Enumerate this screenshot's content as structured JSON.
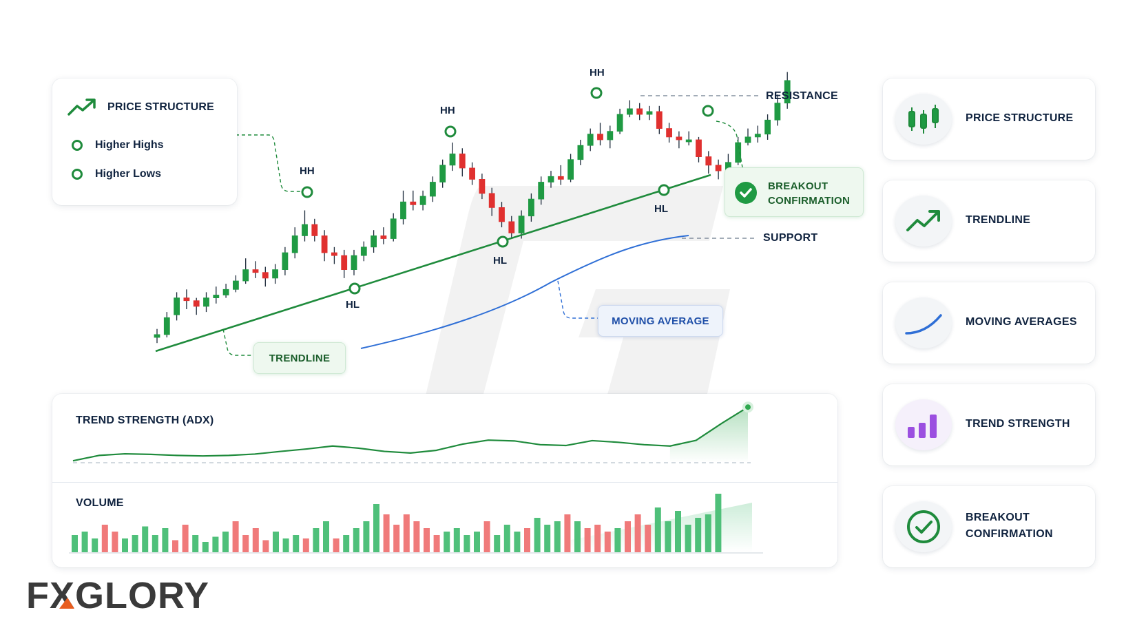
{
  "brand": {
    "logo": "FXGLORY",
    "accent": "#e85d1f"
  },
  "colors": {
    "bull": "#1f9a43",
    "bear": "#e0302f",
    "trend": "#1f8b3c",
    "ma": "#2f6fd6",
    "volume_bull": "#4fc07a",
    "volume_bear": "#f07a7a"
  },
  "price_structure_card": {
    "title": "PRICE STRUCTURE",
    "items": [
      "Higher Highs",
      "Higher Lows"
    ],
    "icon": "trend-up-icon"
  },
  "annotations": {
    "resistance": "RESISTANCE",
    "support": "SUPPORT",
    "trendline": "TRENDLINE",
    "moving_average": "MOVING AVERAGE",
    "breakout": [
      "BREAKOUT",
      "CONFIRMATION"
    ]
  },
  "pivots": [
    "HH",
    "HL",
    "HH",
    "HL",
    "HH",
    "HL"
  ],
  "indicators": {
    "adx_title": "TREND STRENGTH (ADX)",
    "volume_title": "VOLUME"
  },
  "sidebar": [
    {
      "label": "PRICE STRUCTURE",
      "icon": "candlestick-icon"
    },
    {
      "label": "TRENDLINE",
      "icon": "trend-up-icon"
    },
    {
      "label": "MOVING AVERAGES",
      "icon": "curve-icon"
    },
    {
      "label": "TREND STRENGTH",
      "icon": "bar-chart-icon"
    },
    {
      "label": "BREAKOUT CONFIRMATION",
      "icon": "check-circle-icon"
    }
  ],
  "chart_data": {
    "type": "candlestick",
    "candles": [
      [
        0.0,
        0.2,
        0.6,
        -0.4
      ],
      [
        0.2,
        1.4,
        1.8,
        0.0
      ],
      [
        1.6,
        2.8,
        3.2,
        1.2
      ],
      [
        2.8,
        2.6,
        3.4,
        2.0
      ],
      [
        2.6,
        2.2,
        2.8,
        1.6
      ],
      [
        2.2,
        2.8,
        3.2,
        1.8
      ],
      [
        2.8,
        3.0,
        3.6,
        2.4
      ],
      [
        3.0,
        3.4,
        3.8,
        2.8
      ],
      [
        3.4,
        4.0,
        4.4,
        3.2
      ],
      [
        4.0,
        4.8,
        5.6,
        3.8
      ],
      [
        4.8,
        4.6,
        5.4,
        4.2
      ],
      [
        4.6,
        4.2,
        5.0,
        3.6
      ],
      [
        4.2,
        4.8,
        5.2,
        3.8
      ],
      [
        4.8,
        6.0,
        6.4,
        4.4
      ],
      [
        6.0,
        7.2,
        7.8,
        5.6
      ],
      [
        7.2,
        8.0,
        9.0,
        6.8
      ],
      [
        8.0,
        7.2,
        8.4,
        6.8
      ],
      [
        7.2,
        6.0,
        7.6,
        5.4
      ],
      [
        6.0,
        5.8,
        6.4,
        5.2
      ],
      [
        5.8,
        4.8,
        6.2,
        4.2
      ],
      [
        4.8,
        5.8,
        6.2,
        4.4
      ],
      [
        5.8,
        6.4,
        6.8,
        5.4
      ],
      [
        6.4,
        7.2,
        7.6,
        6.0
      ],
      [
        7.2,
        7.0,
        7.8,
        6.6
      ],
      [
        7.0,
        8.4,
        8.8,
        6.8
      ],
      [
        8.4,
        9.6,
        10.4,
        8.0
      ],
      [
        9.6,
        9.4,
        10.4,
        9.0
      ],
      [
        9.4,
        10.0,
        10.4,
        9.0
      ],
      [
        10.0,
        11.0,
        11.4,
        9.6
      ],
      [
        11.0,
        12.2,
        12.6,
        10.6
      ],
      [
        12.2,
        13.0,
        13.8,
        11.8
      ],
      [
        13.0,
        12.0,
        13.4,
        11.4
      ],
      [
        12.0,
        11.2,
        12.4,
        10.8
      ],
      [
        11.2,
        10.2,
        11.6,
        9.8
      ],
      [
        10.2,
        9.2,
        10.6,
        8.6
      ],
      [
        9.2,
        8.2,
        9.6,
        7.8
      ],
      [
        8.2,
        7.4,
        8.6,
        7.0
      ],
      [
        7.4,
        8.6,
        9.0,
        7.0
      ],
      [
        8.6,
        9.8,
        10.2,
        8.2
      ],
      [
        9.8,
        11.0,
        11.4,
        9.4
      ],
      [
        11.0,
        11.4,
        11.8,
        10.6
      ],
      [
        11.4,
        11.2,
        12.2,
        10.8
      ],
      [
        11.2,
        12.6,
        13.0,
        11.0
      ],
      [
        12.6,
        13.6,
        14.0,
        12.2
      ],
      [
        13.6,
        14.4,
        14.8,
        13.2
      ],
      [
        14.4,
        14.0,
        15.2,
        13.6
      ],
      [
        14.0,
        14.6,
        15.0,
        13.4
      ],
      [
        14.6,
        15.8,
        16.2,
        14.4
      ],
      [
        15.8,
        16.2,
        16.8,
        15.6
      ],
      [
        16.2,
        15.8,
        16.6,
        15.4
      ],
      [
        15.8,
        16.0,
        16.4,
        15.4
      ],
      [
        16.0,
        14.8,
        16.4,
        14.4
      ],
      [
        14.8,
        14.2,
        15.2,
        13.8
      ],
      [
        14.2,
        14.0,
        14.6,
        13.4
      ],
      [
        14.0,
        14.0,
        14.6,
        13.6
      ],
      [
        14.0,
        12.8,
        14.2,
        12.4
      ],
      [
        12.8,
        12.2,
        13.2,
        11.6
      ],
      [
        12.2,
        11.8,
        12.6,
        11.2
      ],
      [
        11.8,
        12.4,
        13.0,
        11.4
      ],
      [
        12.4,
        13.8,
        14.2,
        12.2
      ],
      [
        13.8,
        14.2,
        14.8,
        13.6
      ],
      [
        14.2,
        14.4,
        15.0,
        13.8
      ],
      [
        14.4,
        15.4,
        15.8,
        14.0
      ],
      [
        15.4,
        16.6,
        17.2,
        15.0
      ],
      [
        16.6,
        18.2,
        18.8,
        16.2
      ]
    ],
    "adx": [
      12,
      14,
      14.6,
      14.4,
      14,
      13.8,
      14,
      14.5,
      15.5,
      16.4,
      17.5,
      16.7,
      15.5,
      14.9,
      15.9,
      18.2,
      19.7,
      19.4,
      18,
      17.7,
      19.5,
      18.9,
      18,
      17.5,
      19.6,
      26,
      32
    ],
    "volume": [
      2,
      2.4,
      1.6,
      3.2,
      2.4,
      1.6,
      2,
      3,
      2,
      2.8,
      1.4,
      3.2,
      2,
      1.2,
      1.8,
      2.4,
      3.6,
      2,
      2.8,
      1.4,
      2.4,
      1.6,
      2,
      1.6,
      2.8,
      3.6,
      1.6,
      2,
      2.8,
      3.6,
      5.6,
      4.4,
      3.2,
      4.4,
      3.6,
      2.8,
      2,
      2.4,
      2.8,
      2,
      2.4,
      3.6,
      2,
      3.2,
      2.4,
      2.8,
      4,
      3.2,
      3.6,
      4.4,
      3.6,
      2.8,
      3.2,
      2.4,
      2.8,
      3.6,
      4.4,
      3.2,
      5.2,
      3.6,
      4.8,
      3.2,
      4,
      4.4,
      6.8
    ]
  }
}
